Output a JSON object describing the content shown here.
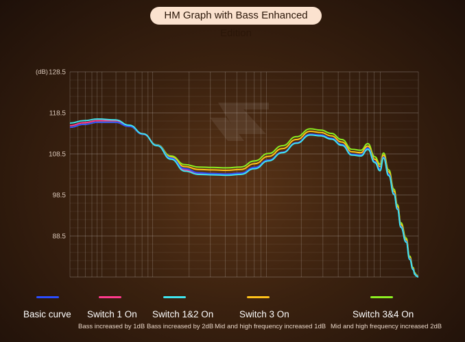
{
  "title": "HM Graph with Bass Enhanced Edition",
  "chart_data": {
    "type": "line",
    "yunit": "(dB)",
    "yticks": [
      "128.5",
      "118.5",
      "108.5",
      "98.5",
      "88.5"
    ],
    "ylim": [
      78.5,
      128.5
    ],
    "xlim": [
      0,
      1
    ],
    "grid": true,
    "series": [
      {
        "name": "Basic curve",
        "color": "#2a4dff",
        "x": [
          0,
          0.04,
          0.08,
          0.13,
          0.17,
          0.21,
          0.25,
          0.29,
          0.33,
          0.37,
          0.41,
          0.45,
          0.49,
          0.53,
          0.57,
          0.61,
          0.65,
          0.69,
          0.72,
          0.75,
          0.78,
          0.81,
          0.835,
          0.855,
          0.875,
          0.89,
          0.9,
          0.915,
          0.93,
          0.94,
          0.95,
          0.965,
          0.975,
          0.985,
          0.99,
          0.995,
          1.0
        ],
        "y": [
          115.0,
          115.7,
          116.2,
          116.2,
          115.2,
          113.3,
          110.6,
          107.5,
          104.9,
          103.9,
          103.7,
          103.6,
          103.8,
          105.2,
          107.0,
          108.9,
          111.2,
          113.3,
          113.1,
          112.3,
          110.8,
          108.4,
          108.2,
          109.9,
          106.6,
          104.8,
          107.7,
          103.5,
          98.8,
          95.2,
          90.8,
          87.2,
          83.0,
          80.4,
          79.2,
          78.8,
          78.5
        ]
      },
      {
        "name": "Switch 1 On",
        "sub": "Bass increased by 1dB",
        "color": "#ff3a8c",
        "x": [
          0,
          0.04,
          0.08,
          0.13,
          0.17,
          0.21,
          0.25,
          0.29,
          0.33,
          0.37,
          0.41,
          0.45,
          0.49,
          0.53,
          0.57,
          0.61,
          0.65,
          0.69,
          0.72,
          0.75,
          0.78,
          0.81,
          0.835,
          0.855,
          0.875,
          0.89,
          0.9,
          0.915,
          0.93,
          0.94,
          0.95,
          0.965,
          0.975,
          0.985,
          0.99,
          0.995,
          1.0
        ],
        "y": [
          115.4,
          116.1,
          116.6,
          116.6,
          115.4,
          113.4,
          110.6,
          107.4,
          104.6,
          103.8,
          103.7,
          103.6,
          103.8,
          105.2,
          107.0,
          108.9,
          111.2,
          113.3,
          113.1,
          112.3,
          110.8,
          108.4,
          108.2,
          109.9,
          106.6,
          104.8,
          107.7,
          103.5,
          98.8,
          95.2,
          90.8,
          87.2,
          83.0,
          80.4,
          79.2,
          78.8,
          78.5
        ]
      },
      {
        "name": "Switch 1&2 On",
        "sub": "Bass increased by 2dB",
        "color": "#3fe6f0",
        "x": [
          0,
          0.04,
          0.08,
          0.13,
          0.17,
          0.21,
          0.25,
          0.29,
          0.33,
          0.37,
          0.41,
          0.45,
          0.49,
          0.53,
          0.57,
          0.61,
          0.65,
          0.69,
          0.72,
          0.75,
          0.78,
          0.81,
          0.835,
          0.855,
          0.875,
          0.89,
          0.9,
          0.915,
          0.93,
          0.94,
          0.95,
          0.965,
          0.975,
          0.985,
          0.99,
          0.995,
          1.0
        ],
        "y": [
          116.0,
          116.6,
          117.0,
          116.8,
          115.5,
          113.4,
          110.5,
          107.2,
          104.3,
          103.5,
          103.4,
          103.3,
          103.5,
          104.9,
          106.8,
          108.8,
          111.1,
          113.1,
          112.9,
          112.1,
          110.6,
          108.2,
          108.0,
          109.6,
          106.4,
          104.4,
          107.5,
          103.2,
          98.6,
          95.0,
          90.6,
          87.0,
          82.8,
          80.3,
          79.1,
          78.7,
          78.5
        ]
      },
      {
        "name": "Switch 3 On",
        "sub": "Mid and high frequency increased 1dB",
        "color": "#ffc21a",
        "x": [
          0,
          0.04,
          0.08,
          0.13,
          0.17,
          0.21,
          0.25,
          0.29,
          0.33,
          0.37,
          0.41,
          0.45,
          0.49,
          0.53,
          0.57,
          0.61,
          0.65,
          0.69,
          0.72,
          0.75,
          0.78,
          0.81,
          0.835,
          0.855,
          0.875,
          0.89,
          0.9,
          0.915,
          0.93,
          0.94,
          0.95,
          0.965,
          0.975,
          0.985,
          0.99,
          0.995,
          1.0
        ],
        "y": [
          115.0,
          115.7,
          116.2,
          116.2,
          115.2,
          113.3,
          110.6,
          107.7,
          105.4,
          104.7,
          104.6,
          104.5,
          104.7,
          106.1,
          107.9,
          109.8,
          112.0,
          114.0,
          113.7,
          112.9,
          111.4,
          109.0,
          108.8,
          110.4,
          107.2,
          105.4,
          108.2,
          104.1,
          99.4,
          95.7,
          91.3,
          87.6,
          83.3,
          80.6,
          79.3,
          78.9,
          78.5
        ]
      },
      {
        "name": "Switch 3&4 On",
        "sub": "Mid and high frequency increased 2dB",
        "color": "#8cf021",
        "x": [
          0,
          0.04,
          0.08,
          0.13,
          0.17,
          0.21,
          0.25,
          0.29,
          0.33,
          0.37,
          0.41,
          0.45,
          0.49,
          0.53,
          0.57,
          0.61,
          0.65,
          0.69,
          0.72,
          0.75,
          0.78,
          0.81,
          0.835,
          0.855,
          0.875,
          0.89,
          0.9,
          0.915,
          0.93,
          0.94,
          0.95,
          0.965,
          0.975,
          0.985,
          0.99,
          0.995,
          1.0
        ],
        "y": [
          115.0,
          115.7,
          116.2,
          116.2,
          115.2,
          113.3,
          110.7,
          108.0,
          105.9,
          105.3,
          105.2,
          105.1,
          105.3,
          106.8,
          108.6,
          110.5,
          112.7,
          114.6,
          114.3,
          113.5,
          112.0,
          109.6,
          109.4,
          111.0,
          107.8,
          106.0,
          108.7,
          104.6,
          99.9,
          96.1,
          91.7,
          88.0,
          83.6,
          80.8,
          79.5,
          79.0,
          78.5
        ]
      }
    ]
  }
}
